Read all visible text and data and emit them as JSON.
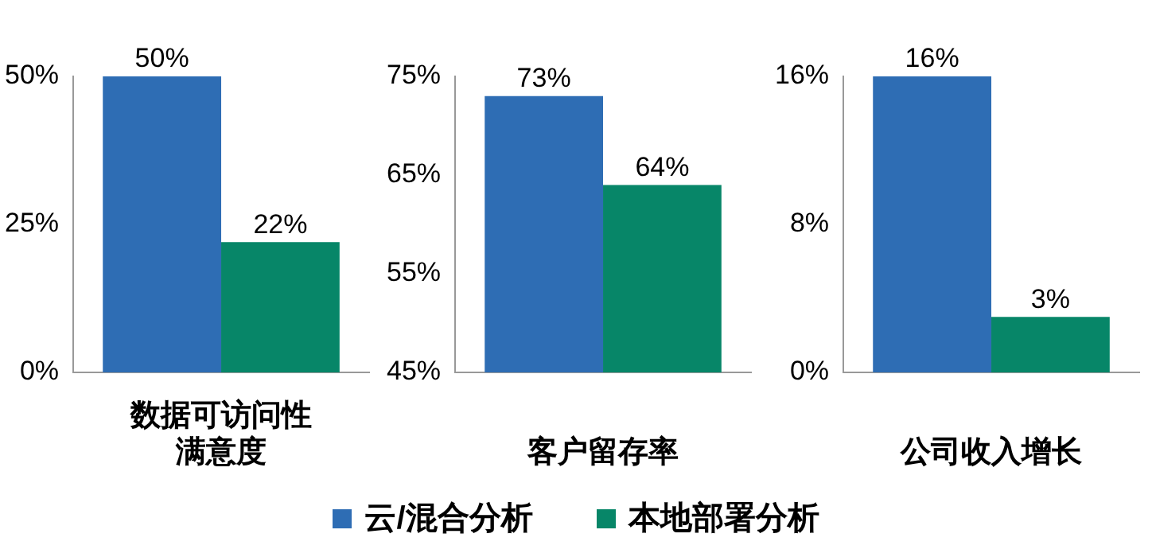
{
  "chart_data": [
    {
      "type": "bar",
      "xlabel": "数据可访问性满意度",
      "categories": [
        null
      ],
      "ylim": [
        0,
        50
      ],
      "yticks": [
        {
          "value": 0,
          "label": "0%"
        },
        {
          "value": 25,
          "label": "25%"
        },
        {
          "value": 50,
          "label": "50%"
        }
      ],
      "grid": false,
      "legend": "bottom",
      "series": [
        {
          "name": "云/混合分析",
          "color": "#2e6db4",
          "values": [
            50
          ],
          "value_labels": [
            "50%"
          ]
        },
        {
          "name": "本地部署分析",
          "color": "#078668",
          "values": [
            22
          ],
          "value_labels": [
            "22%"
          ]
        }
      ]
    },
    {
      "type": "bar",
      "xlabel": "客户留存率",
      "categories": [
        null
      ],
      "ylim": [
        45,
        75
      ],
      "yticks": [
        {
          "value": 45,
          "label": "45%"
        },
        {
          "value": 55,
          "label": "55%"
        },
        {
          "value": 65,
          "label": "65%"
        },
        {
          "value": 75,
          "label": "75%"
        }
      ],
      "grid": false,
      "series": [
        {
          "color": "#2e6db4",
          "values": [
            73
          ],
          "value_labels": [
            "73%"
          ]
        },
        {
          "color": "#078668",
          "values": [
            64
          ],
          "value_labels": [
            "64%"
          ]
        }
      ]
    },
    {
      "type": "bar",
      "xlabel": "公司收入增长",
      "categories": [
        null
      ],
      "ylim": [
        0,
        16
      ],
      "yticks": [
        {
          "value": 0,
          "label": "0%"
        },
        {
          "value": 8,
          "label": "8%"
        },
        {
          "value": 16,
          "label": "16%"
        }
      ],
      "grid": false,
      "series": [
        {
          "color": "#2e6db4",
          "values": [
            16
          ],
          "value_labels": [
            "16%"
          ]
        },
        {
          "color": "#078668",
          "values": [
            3
          ],
          "value_labels": [
            "3%"
          ]
        }
      ]
    }
  ]
}
